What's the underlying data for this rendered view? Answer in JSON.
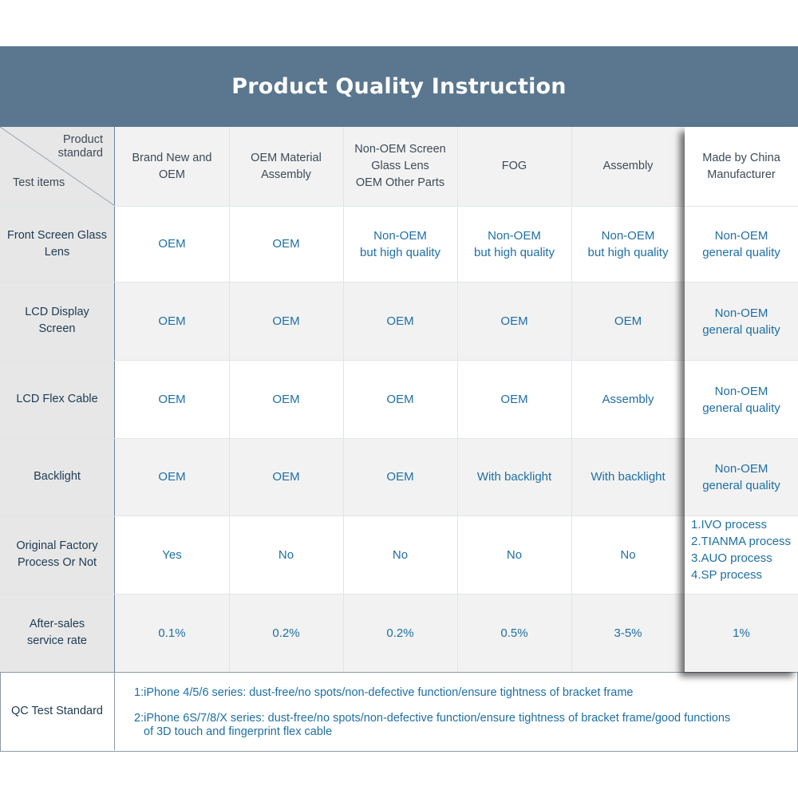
{
  "title": "Product Quality Instruction",
  "corner": {
    "top_line1": "Product",
    "top_line2": "standard",
    "bottom": "Test items"
  },
  "columns": [
    {
      "lines": [
        "Brand New and",
        "OEM"
      ]
    },
    {
      "lines": [
        "OEM Material",
        "Assembly"
      ]
    },
    {
      "lines": [
        "Non-OEM Screen",
        "Glass Lens",
        "OEM Other Parts"
      ]
    },
    {
      "lines": [
        "FOG"
      ]
    },
    {
      "lines": [
        "Assembly"
      ]
    }
  ],
  "china_column": {
    "lines": [
      "Made by China",
      "Manufacturer"
    ]
  },
  "rows": [
    {
      "label": [
        "Front Screen Glass",
        "Lens"
      ],
      "values": [
        [
          "OEM"
        ],
        [
          "OEM"
        ],
        [
          "Non-OEM",
          "but high quality"
        ],
        [
          "Non-OEM",
          "but high quality"
        ],
        [
          "Non-OEM",
          "but high quality"
        ]
      ],
      "china": [
        "Non-OEM",
        "general quality"
      ]
    },
    {
      "label": [
        "LCD Display",
        "Screen"
      ],
      "values": [
        [
          "OEM"
        ],
        [
          "OEM"
        ],
        [
          "OEM"
        ],
        [
          "OEM"
        ],
        [
          "OEM"
        ]
      ],
      "china": [
        "Non-OEM",
        "general quality"
      ]
    },
    {
      "label": [
        "LCD Flex Cable"
      ],
      "values": [
        [
          "OEM"
        ],
        [
          "OEM"
        ],
        [
          "OEM"
        ],
        [
          "OEM"
        ],
        [
          "Assembly"
        ]
      ],
      "china": [
        "Non-OEM",
        "general quality"
      ]
    },
    {
      "label": [
        "Backlight"
      ],
      "values": [
        [
          "OEM"
        ],
        [
          "OEM"
        ],
        [
          "OEM"
        ],
        [
          "With backlight"
        ],
        [
          "With backlight"
        ]
      ],
      "china": [
        "Non-OEM",
        "general quality"
      ]
    },
    {
      "label": [
        "Original Factory",
        "Process Or Not"
      ],
      "values": [
        [
          "Yes"
        ],
        [
          "No"
        ],
        [
          "No"
        ],
        [
          "No"
        ],
        [
          "No"
        ]
      ],
      "china": [
        "1.IVO process",
        "2.TIANMA process",
        "3.AUO process",
        "4.SP process"
      ]
    },
    {
      "label": [
        "After-sales",
        "service rate"
      ],
      "values": [
        [
          "0.1%"
        ],
        [
          "0.2%"
        ],
        [
          "0.2%"
        ],
        [
          "0.5%"
        ],
        [
          "3-5%"
        ]
      ],
      "china": [
        "1%"
      ]
    }
  ],
  "qc": {
    "label": "QC Test Standard",
    "note1": "1:iPhone 4/5/6 series: dust-free/no spots/non-defective function/ensure tightness of bracket frame",
    "note2_line1": "2:iPhone 6S/7/8/X series: dust-free/no spots/non-defective function/ensure tightness of bracket frame/good functions",
    "note2_line2": "of 3D touch and fingerprint flex cable"
  },
  "colors": {
    "title_bg": "#5a778f",
    "label_bg": "#e7e7e7",
    "alt_row_bg": "#f2f2f2",
    "value_text": "#1e6fa4",
    "header_text": "#3d4a57"
  }
}
